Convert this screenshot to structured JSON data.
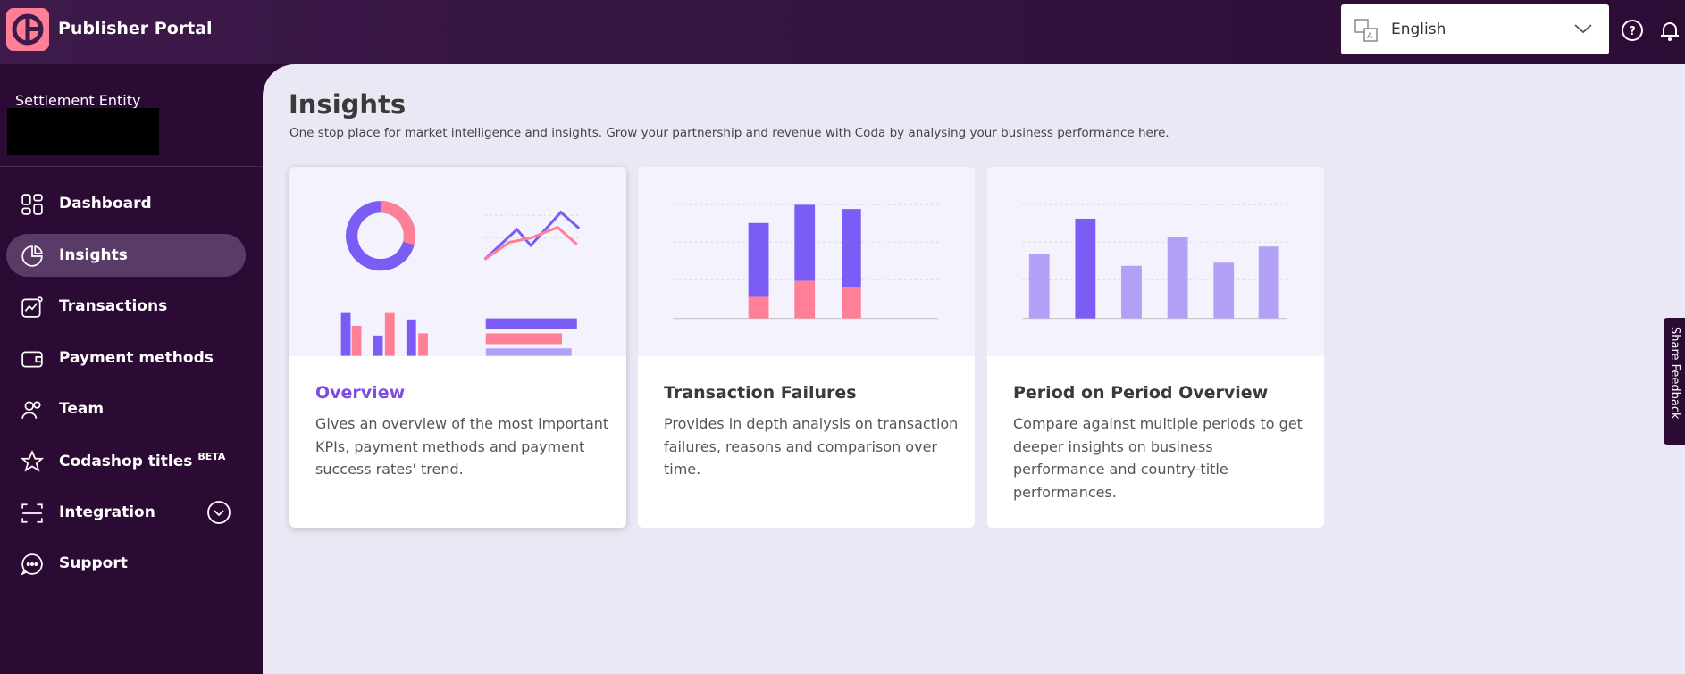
{
  "header": {
    "title": "Publisher Portal",
    "language": "English"
  },
  "sidebar": {
    "entity_label": "Settlement Entity",
    "nav": [
      {
        "label": "Dashboard"
      },
      {
        "label": "Insights"
      },
      {
        "label": "Transactions"
      },
      {
        "label": "Payment methods"
      },
      {
        "label": "Team"
      },
      {
        "label": "Codashop titles",
        "badge": "BETA"
      },
      {
        "label": "Integration"
      },
      {
        "label": "Support"
      }
    ]
  },
  "page": {
    "title": "Insights",
    "subtitle": "One stop place for market intelligence and insights. Grow your partnership and revenue with Coda by analysing your business performance here."
  },
  "cards": [
    {
      "title": "Overview",
      "description": "Gives an overview of the most important KPIs, payment methods and payment success rates' trend."
    },
    {
      "title": "Transaction Failures",
      "description": "Provides in depth analysis on transaction failures, reasons and comparison over time."
    },
    {
      "title": "Period on Period Overview",
      "description": "Compare against multiple periods to get deeper insights on business performance and country-title performances."
    }
  ],
  "feedback_tab": "Share Feedback"
}
